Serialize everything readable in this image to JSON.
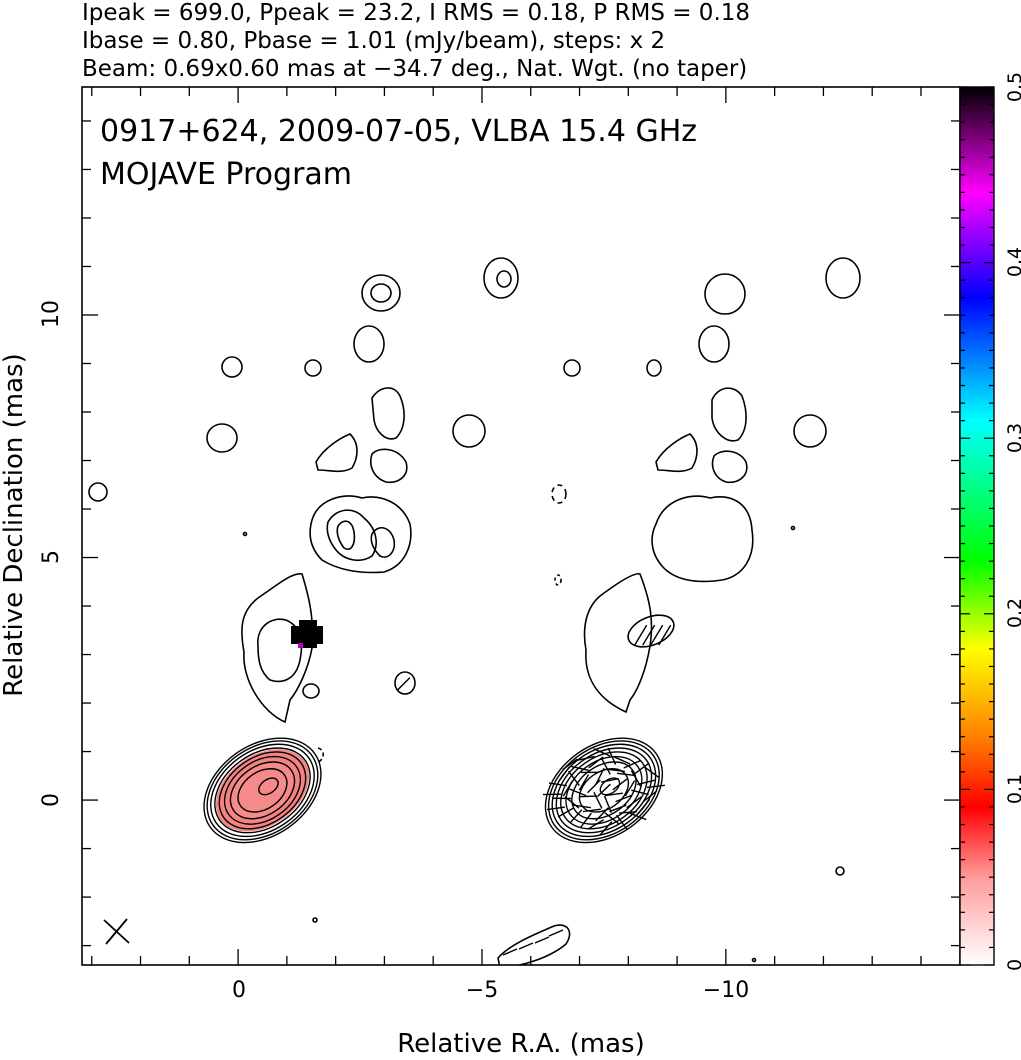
{
  "header_lines": [
    "Ipeak = 699.0, Ppeak = 23.2, I RMS = 0.18, P RMS = 0.18",
    "Ibase = 0.80, Pbase = 1.01 (mJy/beam), steps: x 2",
    "Beam: 0.69x0.60 mas at −34.7 deg., Nat. Wgt. (no taper)"
  ],
  "chart_data": {
    "type": "contour",
    "panels": [
      "total intensity with fractional polarization colour",
      "total intensity with polarization vectors"
    ],
    "source": "0917+624, 2009-07-05, VLBA 15.4 GHz",
    "program": "MOJAVE Program",
    "xlabel": "Relative R.A. (mas)",
    "ylabel": "Relative Declination (mas)",
    "xlim": [
      3.2,
      -14.8
    ],
    "ylim": [
      -3.4,
      14.7
    ],
    "x_ticks": [
      0,
      -5,
      -10
    ],
    "x_tick_labels": [
      "0",
      "−5",
      "−10"
    ],
    "y_ticks": [
      0,
      5,
      10
    ],
    "y_tick_labels": [
      "0",
      "5",
      "10"
    ],
    "colorbar": {
      "range": [
        0,
        0.5
      ],
      "ticks": [
        0,
        0.1,
        0.2,
        0.3,
        0.4,
        0.5
      ],
      "tick_labels": [
        "0",
        "0.1",
        "0.2",
        "0.3",
        "0.4",
        "0.5"
      ],
      "colors": [
        "#ffffff",
        "#ff8080",
        "#ff0000",
        "#ff8000",
        "#ffff00",
        "#00ff00",
        "#00ffff",
        "#0000ff",
        "#ff00ff",
        "#000000"
      ]
    },
    "core": {
      "x": -0.5,
      "y": 0.2,
      "pa_deg": 35,
      "radii_mas": [
        [
          0.55,
          0.38
        ],
        [
          0.72,
          0.5
        ],
        [
          0.85,
          0.6
        ],
        [
          0.97,
          0.68
        ],
        [
          1.07,
          0.75
        ],
        [
          1.16,
          0.82
        ],
        [
          1.24,
          0.88
        ],
        [
          1.31,
          0.93
        ]
      ]
    },
    "beam": {
      "major": 0.69,
      "minor": 0.6,
      "pa": -34.7
    },
    "fractional_pol_peak": 0.06
  }
}
